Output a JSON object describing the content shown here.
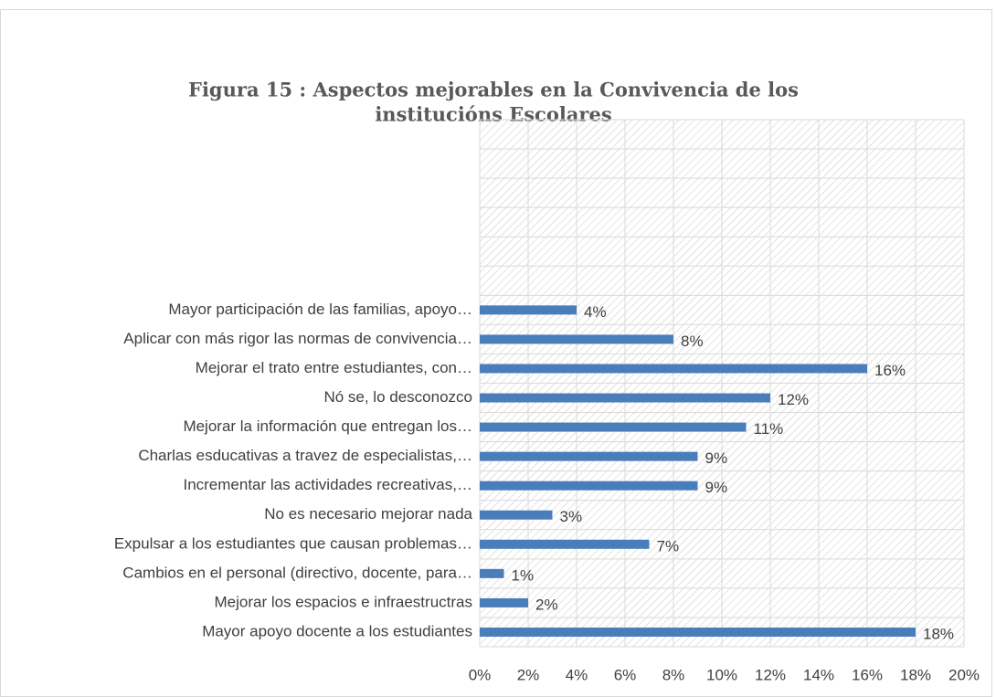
{
  "chart_data": {
    "type": "bar",
    "orientation": "horizontal",
    "title": [
      "Figura 15 : Aspectos mejorables en la Convivencia de los",
      "institucións Escolares"
    ],
    "categories": [
      "Mayor apoyo docente a los estudiantes",
      "Mejorar los espacios e infraestructras",
      "Cambios en el personal (directivo, docente, para…",
      "Expulsar a los estudiantes que causan problemas…",
      "No es necesario mejorar nada",
      "Incrementar las actividades recreativas,…",
      "Charlas esducativas a travez de especialistas,…",
      "Mejorar la información que entregan los…",
      "Nó se, lo desconozco",
      "Mejorar el trato entre estudiantes, con…",
      "Aplicar con más rigor las normas de convivencia…",
      "Mayor participación de las familias, apoyo…",
      null,
      null,
      null,
      null,
      null,
      null
    ],
    "values": [
      18,
      2,
      1,
      7,
      3,
      9,
      9,
      11,
      12,
      16,
      8,
      4,
      null,
      null,
      null,
      null,
      null,
      null
    ],
    "value_labels": [
      "18%",
      "2%",
      "1%",
      "7%",
      "3%",
      "9%",
      "9%",
      "11%",
      "12%",
      "16%",
      "8%",
      "4%",
      null,
      null,
      null,
      null,
      null,
      null
    ],
    "color": "#4a7ebb",
    "xlim": [
      0,
      20
    ],
    "xticks": [
      {
        "value": 0,
        "label": "0%"
      },
      {
        "value": 2,
        "label": "2%"
      },
      {
        "value": 4,
        "label": "4%"
      },
      {
        "value": 6,
        "label": "6%"
      },
      {
        "value": 8,
        "label": "8%"
      },
      {
        "value": 10,
        "label": "10%"
      },
      {
        "value": 12,
        "label": "12%"
      },
      {
        "value": 14,
        "label": "14%"
      },
      {
        "value": 16,
        "label": "16%"
      },
      {
        "value": 18,
        "label": "18%"
      },
      {
        "value": 20,
        "label": "20%"
      }
    ],
    "grid": true
  }
}
